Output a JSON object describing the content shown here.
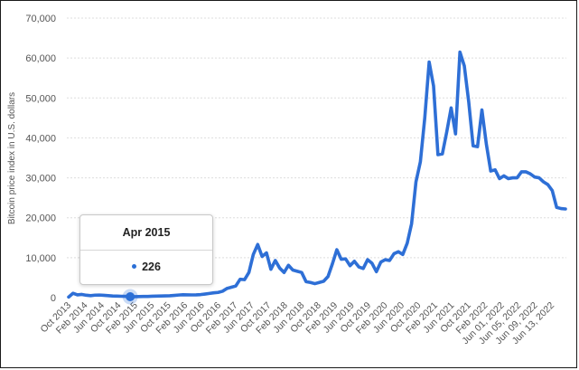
{
  "colors": {
    "line": "#2e6fd6",
    "grid": "#dddddd",
    "marker": "#2b6fd6"
  },
  "tooltip": {
    "title": "Apr 2015",
    "value": "226"
  },
  "chart_data": {
    "type": "line",
    "ylabel": "Bitcoin price index in U.S. dollars",
    "xlabel": "",
    "ylim": [
      0,
      70000
    ],
    "yticks": [
      0,
      10000,
      20000,
      30000,
      40000,
      50000,
      60000,
      70000
    ],
    "ytick_labels": [
      "0",
      "10,000",
      "20,000",
      "30,000",
      "40,000",
      "50,000",
      "60,000",
      "70,000"
    ],
    "xtick_labels": [
      "Oct 2013",
      "Feb 2014",
      "Jun 2014",
      "Oct 2014",
      "Feb 2015",
      "Jun 2015",
      "Oct 2015",
      "Feb 2016",
      "Jun 2016",
      "Oct 2016",
      "Feb 2017",
      "Jun 2017",
      "Oct 2017",
      "Feb 2018",
      "Jun 2018",
      "Oct 2018",
      "Feb 2019",
      "Jun 2019",
      "Oct 2019",
      "Feb 2020",
      "Jun 2020",
      "Oct 2020",
      "Feb 2021",
      "Jun 2021",
      "Oct 2021",
      "Feb 2022",
      "Jun 01, 2022",
      "Jun 05, 2022",
      "Jun 09, 2022",
      "Jun 13, 2022"
    ],
    "grid": true,
    "highlight": {
      "label": "Apr 2015",
      "value": 226
    },
    "series": [
      {
        "values": [
          150,
          1100,
          700,
          800,
          600,
          500,
          620,
          650,
          580,
          500,
          400,
          380,
          340,
          320,
          226,
          250,
          260,
          290,
          300,
          360,
          390,
          420,
          440,
          460,
          560,
          650,
          720,
          690,
          680,
          700,
          760,
          900,
          1050,
          1200,
          1300,
          1600,
          2300,
          2600,
          2900,
          4600,
          4500,
          6300,
          10800,
          13300,
          10300,
          11200,
          7100,
          9300,
          7400,
          6300,
          8100,
          6900,
          6600,
          6300,
          4000,
          3800,
          3500,
          3800,
          4100,
          5300,
          8500,
          12000,
          9600,
          9700,
          8000,
          9100,
          7700,
          7300,
          9500,
          8600,
          6500,
          8900,
          9500,
          9300,
          11000,
          11500,
          10800,
          13600,
          18500,
          29000,
          34000,
          45000,
          59000,
          53000,
          35800,
          36000,
          41500,
          47500,
          41000,
          61500,
          58000,
          49000,
          38000,
          37800,
          47000,
          38500,
          31700,
          32000,
          29800,
          30500,
          29800,
          30000,
          30000,
          31500,
          31500,
          31000,
          30200,
          30000,
          29000,
          28300,
          26800,
          22600,
          22300,
          22200
        ]
      }
    ]
  }
}
